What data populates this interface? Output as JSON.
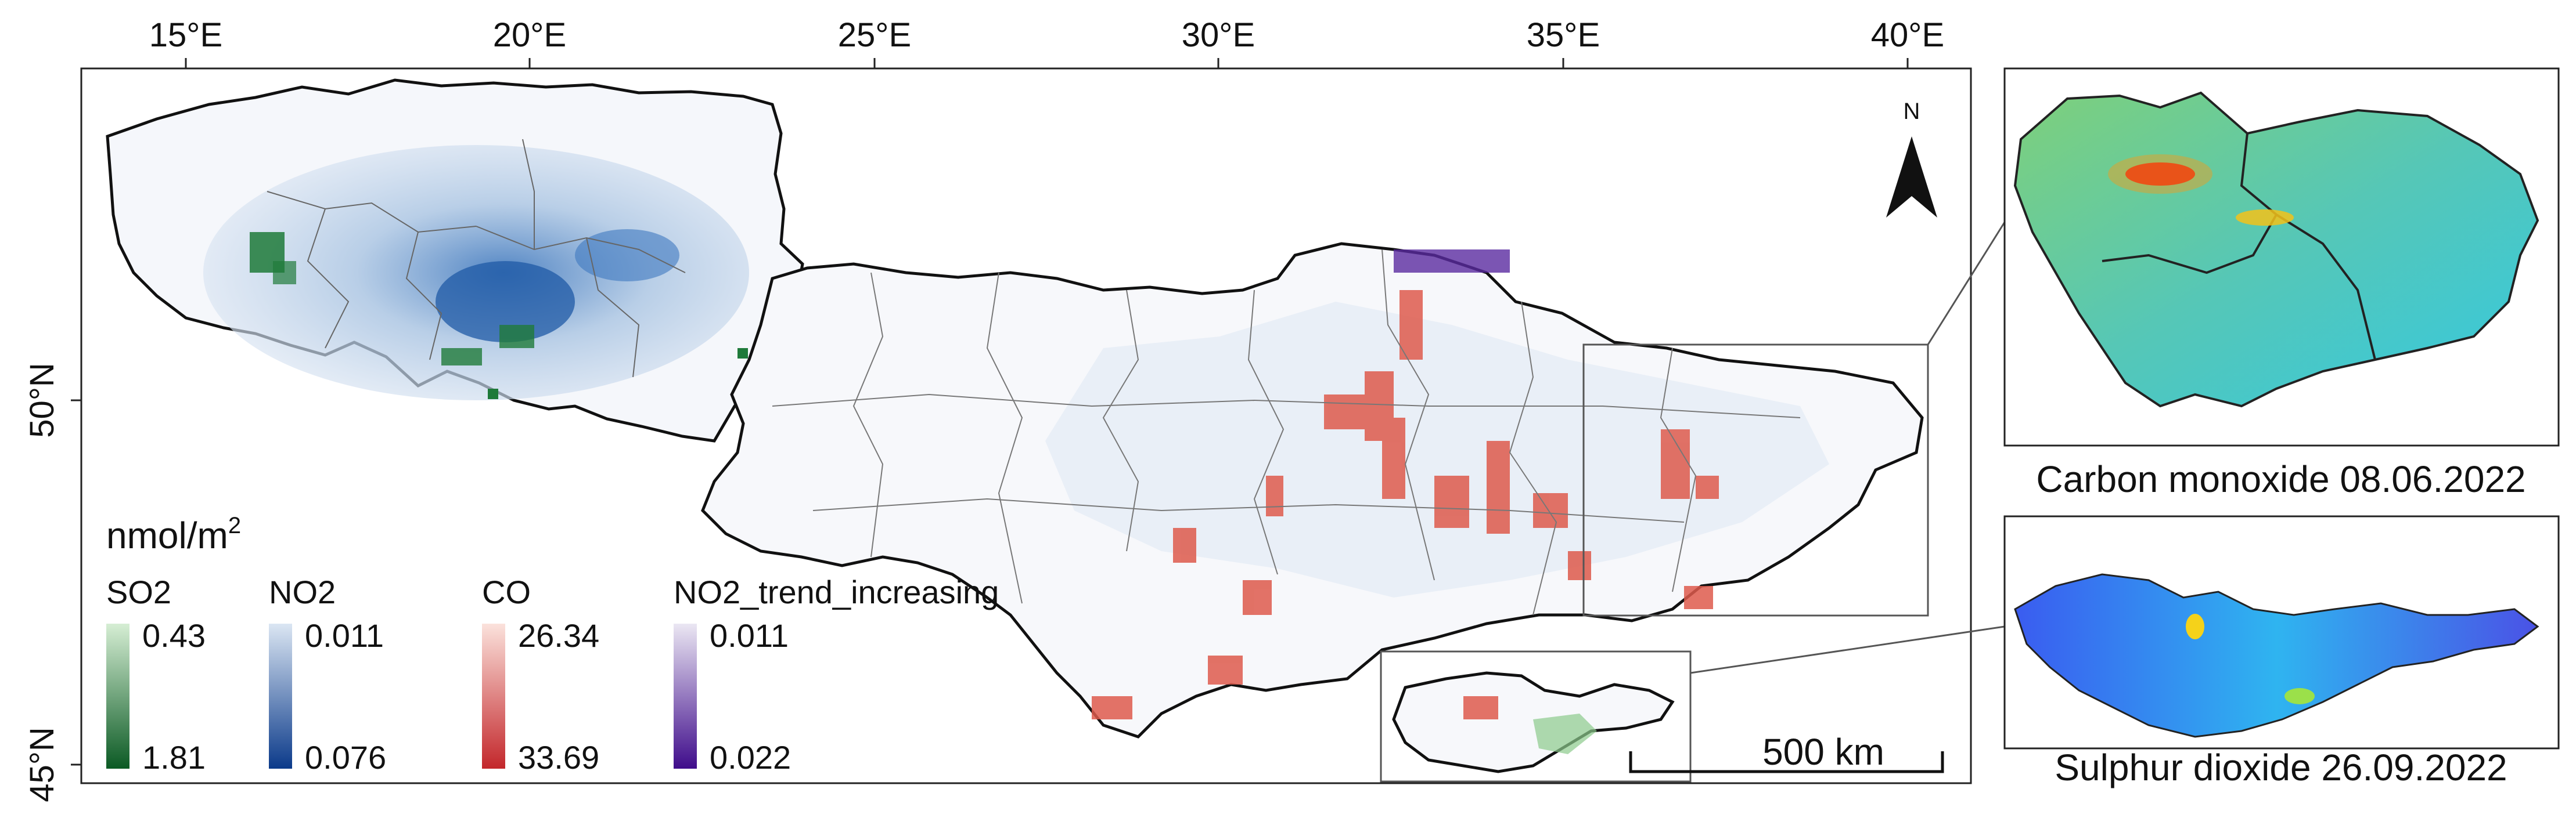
{
  "main_map": {
    "lon_labels": [
      "15°E",
      "20°E",
      "25°E",
      "30°E",
      "35°E",
      "40°E"
    ],
    "lat_labels": [
      "50°N",
      "45°N"
    ],
    "north_arrow_label": "N",
    "scale_bar_label": "500 km"
  },
  "legend": {
    "unit": "nmol/m",
    "unit_superscript": "2",
    "groups": [
      {
        "name": "SO2",
        "top_label": "0.43",
        "bottom_label": "1.81",
        "colors": [
          "#d6eed4",
          "#0b5a24"
        ]
      },
      {
        "name": "NO2",
        "top_label": "0.011",
        "bottom_label": "0.076",
        "colors": [
          "#dbe6f3",
          "#0b3a8a"
        ]
      },
      {
        "name": "CO",
        "top_label": "26.34",
        "bottom_label": "33.69",
        "colors": [
          "#fbe2dc",
          "#c3272b"
        ]
      },
      {
        "name": "NO2_trend_increasing",
        "top_label": "0.011",
        "bottom_label": "0.022",
        "colors": [
          "#ebe7f3",
          "#3f0c8b"
        ]
      }
    ]
  },
  "insets": [
    {
      "caption": "Carbon monoxide 08.06.2022"
    },
    {
      "caption": "Sulphur dioxide 26.09.2022"
    }
  ]
}
